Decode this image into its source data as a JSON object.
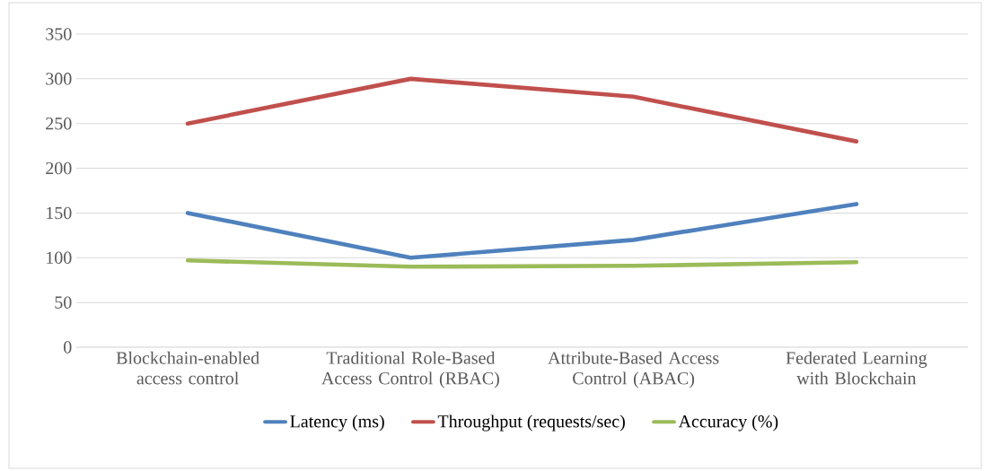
{
  "chart_data": {
    "type": "line",
    "categories": [
      "Blockchain-enabled access control",
      "Traditional Role-Based Access Control (RBAC)",
      "Attribute-Based Access Control (ABAC)",
      "Federated Learning with Blockchain"
    ],
    "series": [
      {
        "name": "Latency (ms)",
        "color": "#4f81bd",
        "values": [
          150,
          100,
          120,
          160
        ]
      },
      {
        "name": "Throughput (requests/sec)",
        "color": "#c0504d",
        "values": [
          250,
          300,
          280,
          230
        ]
      },
      {
        "name": "Accuracy (%)",
        "color": "#9bbb59",
        "values": [
          97,
          90,
          91,
          95
        ]
      }
    ],
    "ylim": [
      0,
      350
    ],
    "yticks": [
      0,
      50,
      100,
      150,
      200,
      250,
      300,
      350
    ],
    "grid": "y",
    "legend": "bottom",
    "marker": "none",
    "line_style": "solid"
  }
}
